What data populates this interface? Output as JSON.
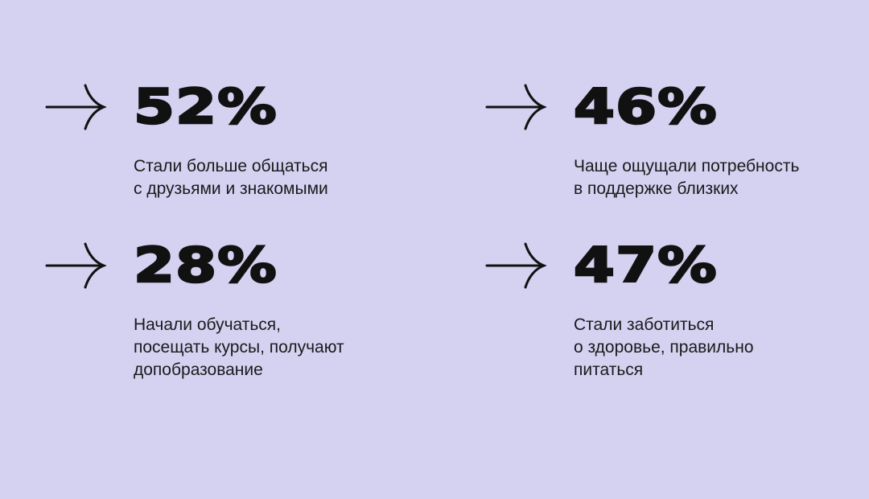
{
  "stats": [
    {
      "value": "52%",
      "lines": [
        "Стали больше общаться",
        "с друзьями и знакомыми"
      ]
    },
    {
      "value": "46%",
      "lines": [
        "Чаще ощущали потребность",
        "в поддержке близких"
      ]
    },
    {
      "value": "28%",
      "lines": [
        "Начали обучаться,",
        "посещать курсы, получают",
        "допобразование"
      ]
    },
    {
      "value": "47%",
      "lines": [
        "Стали заботиться",
        "о здоровье, правильно",
        "питаться"
      ]
    }
  ],
  "colors": {
    "background": "#d5d1f1",
    "text": "#111111"
  },
  "icons": {
    "arrow": "arrow-right-icon"
  }
}
